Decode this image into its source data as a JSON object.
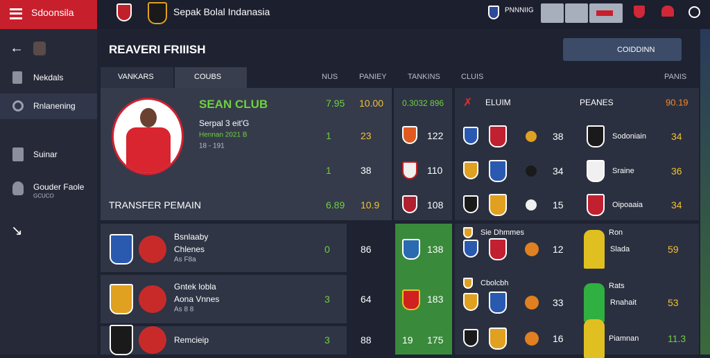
{
  "topbar": {
    "brand": "Sdoonsila",
    "title": "Sepak Bolal Indanasia",
    "status": "PNNNIIG"
  },
  "sidebar": {
    "items": [
      "Nekdals",
      "Rnlanening",
      "Suinar",
      "Gouder Faole"
    ],
    "sub": "GCUCO"
  },
  "header": {
    "title": "REAVERI FRIIISH",
    "button": "COIDDINN"
  },
  "tabs": [
    "VANKARS",
    "COUBS"
  ],
  "columns": [
    "NUS",
    "PANIEY",
    "TANKINS",
    "CLUIS",
    "PANIS"
  ],
  "card": {
    "club": "SEAN CLUB",
    "line1": "Serpal 3 eit'G",
    "line2": "Hennan 2021 B",
    "line3": "18 - 191",
    "top": [
      "7.95",
      "10.00"
    ],
    "rows": [
      [
        "1",
        "23"
      ],
      [
        "1",
        "38"
      ]
    ],
    "transfer": "TRANSFER PEMAIN",
    "transfer_values": [
      "6.89",
      "10.9"
    ]
  },
  "middle": {
    "header": "0.3032 896",
    "values": [
      "122",
      "110",
      "108"
    ]
  },
  "right": {
    "header": [
      "ELUIM",
      "PEANES",
      "90.19"
    ],
    "rows": [
      [
        "38",
        "Sodoniain",
        "34"
      ],
      [
        "34",
        "Sraine",
        "36"
      ],
      [
        "15",
        "Oipoaaia",
        "34"
      ]
    ]
  },
  "lower_left": [
    {
      "name": "Bsnlaaby",
      "sub": "Chlenes",
      "sub2": "As F8a",
      "a": "0",
      "b": "86"
    },
    {
      "name": "Gntek lobla",
      "sub": "Aona Vnnes",
      "sub2": "As 8 8",
      "a": "3",
      "b": "64"
    },
    {
      "name": "Remcieip",
      "a": "3",
      "b": "88"
    }
  ],
  "lower_middle": {
    "values": [
      "138",
      "183",
      "175"
    ],
    "extra": "19"
  },
  "lower_right": [
    {
      "label": "Sie Dhmmes",
      "num": "12",
      "name": "Ron",
      "name2": "Slada",
      "value": "59"
    },
    {
      "label": "Cbolcbh",
      "num": "33",
      "name": "Rats",
      "name2": "Rnahait",
      "value": "53"
    },
    {
      "num": "16",
      "name": "Piamnan",
      "value": "11.3"
    }
  ]
}
